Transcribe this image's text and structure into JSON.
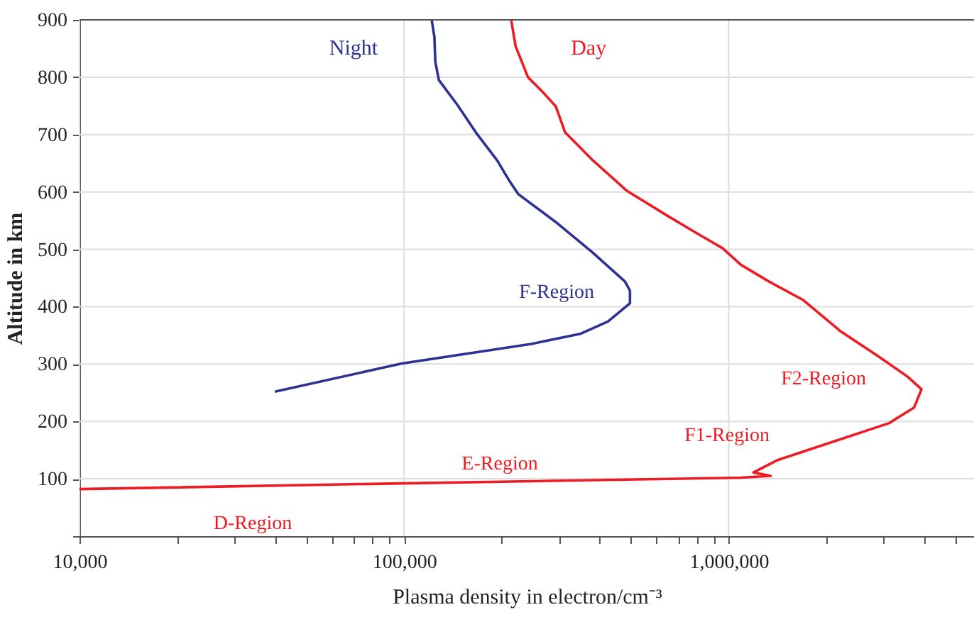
{
  "chart_data": {
    "type": "line",
    "xlabel": "Plasma density in electron/cm⁻³",
    "ylabel": "Altitude in km",
    "log": "x",
    "grid": true,
    "line_style": "solid",
    "marker": "none",
    "xlim": [
      10000,
      5700000
    ],
    "ylim": [
      0,
      900
    ],
    "xticks": [
      {
        "value": 10000,
        "label": "10,000"
      },
      {
        "value": 20000,
        "label": null
      },
      {
        "value": 30000,
        "label": null
      },
      {
        "value": 40000,
        "label": null
      },
      {
        "value": 50000,
        "label": null
      },
      {
        "value": 60000,
        "label": null
      },
      {
        "value": 70000,
        "label": null
      },
      {
        "value": 80000,
        "label": null
      },
      {
        "value": 90000,
        "label": null
      },
      {
        "value": 100000,
        "label": "100,000"
      },
      {
        "value": 200000,
        "label": null
      },
      {
        "value": 300000,
        "label": null
      },
      {
        "value": 400000,
        "label": null
      },
      {
        "value": 500000,
        "label": null
      },
      {
        "value": 600000,
        "label": null
      },
      {
        "value": 700000,
        "label": null
      },
      {
        "value": 800000,
        "label": null
      },
      {
        "value": 900000,
        "label": null
      },
      {
        "value": 1000000,
        "label": "1,000,000"
      },
      {
        "value": 2000000,
        "label": null
      },
      {
        "value": 3000000,
        "label": null
      },
      {
        "value": 4000000,
        "label": null
      },
      {
        "value": 5000000,
        "label": null
      }
    ],
    "yticks": [
      {
        "value": 0,
        "label": null
      },
      100,
      200,
      300,
      400,
      500,
      600,
      700,
      800,
      900
    ],
    "series": [
      {
        "name": "Night",
        "color": "#2e3192",
        "x": [
          40000,
          98500,
          246500,
          350600,
          424600,
          496500,
          496500,
          479000,
          380000,
          292500,
          225000,
          211800,
          193500,
          166300,
          145900,
          128000,
          124800,
          124000,
          121700
        ],
        "values": [
          252,
          301,
          335,
          353,
          374,
          406,
          428,
          444,
          495,
          548,
          596,
          618,
          655,
          704,
          752,
          795,
          827,
          870,
          899
        ]
      },
      {
        "name": "Day",
        "color": "#ed1c24",
        "x": [
          10000,
          98100,
          1091000,
          1347000,
          1192000,
          1420000,
          2108000,
          3122000,
          3725000,
          3928000,
          3558000,
          2866000,
          2202000,
          1692000,
          1330000,
          1091000,
          957000,
          803500,
          645700,
          485700,
          381700,
          313300,
          293500,
          268700,
          240800,
          220600,
          213900
        ],
        "values": [
          82,
          92,
          102,
          105,
          111,
          133,
          165,
          197,
          224,
          256,
          278,
          315,
          358,
          412,
          444,
          473,
          502,
          527,
          559,
          602,
          655,
          704,
          749,
          773,
          800,
          854,
          899
        ]
      }
    ],
    "annotations": [
      "F-Region",
      "F2-Region",
      "F1-Region",
      "E-Region",
      "D-Region"
    ]
  }
}
